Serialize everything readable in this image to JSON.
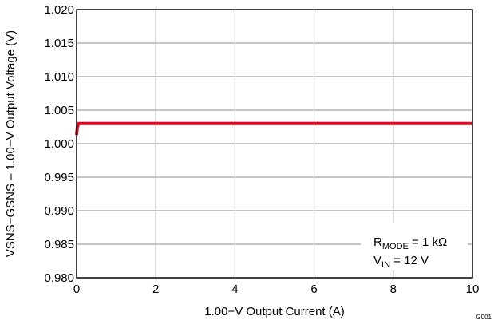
{
  "chart_data": {
    "type": "line",
    "title": "",
    "xlabel": "1.00−V Output Current  (A)",
    "ylabel": "VSNS−GSNS – 1.00−V Output Voltage (V)",
    "xlim": [
      0,
      10
    ],
    "ylim": [
      0.98,
      1.02
    ],
    "x_ticks": [
      0,
      2,
      4,
      6,
      8,
      10
    ],
    "x_tick_labels": [
      "0",
      "2",
      "4",
      "6",
      "8",
      "10"
    ],
    "y_ticks": [
      0.98,
      0.985,
      0.99,
      0.995,
      1.0,
      1.005,
      1.01,
      1.015,
      1.02
    ],
    "y_tick_labels": [
      "0.980",
      "0.985",
      "0.990",
      "0.995",
      "1.000",
      "1.005",
      "1.010",
      "1.015",
      "1.020"
    ],
    "grid": true,
    "series": [
      {
        "color": "#e8001c",
        "x": [
          0,
          0.02,
          0.05,
          0.1,
          1,
          2,
          4,
          6,
          8,
          10
        ],
        "y": [
          1.0013,
          1.0025,
          1.003,
          1.003,
          1.003,
          1.003,
          1.003,
          1.003,
          1.003,
          1.003
        ]
      }
    ],
    "annotation": {
      "line1_main": "R",
      "line1_sub": "MODE",
      "line1_rest": " = 1 kΩ",
      "line2_main": "V",
      "line2_sub": "IN",
      "line2_rest": " = 12 V"
    },
    "figure_id": "G001"
  }
}
